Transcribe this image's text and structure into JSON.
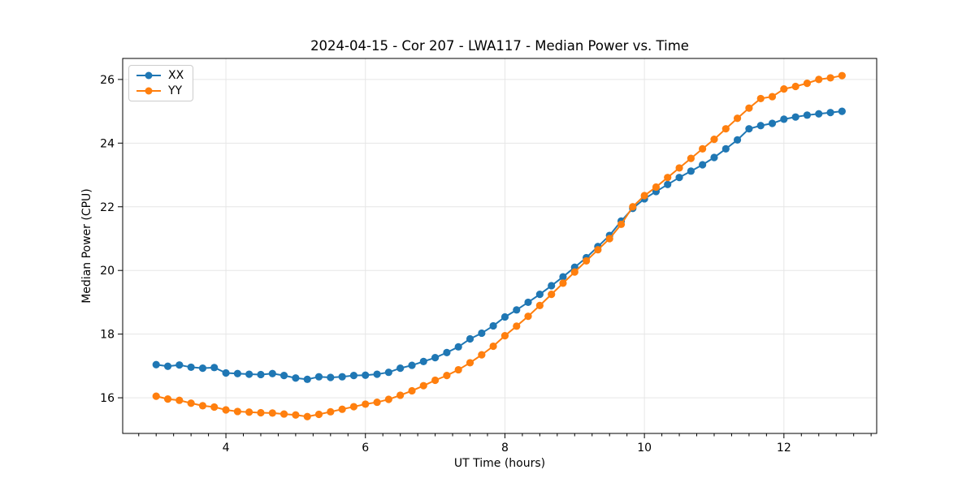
{
  "chart_data": {
    "type": "line",
    "title": "2024-04-15 - Cor 207 - LWA117 - Median Power vs. Time",
    "xlabel": "UT Time (hours)",
    "ylabel": "Median Power (CPU)",
    "legend_position": "upper-left",
    "grid": true,
    "marker": "o",
    "xlim": [
      2.52,
      13.33
    ],
    "ylim": [
      14.88,
      26.66
    ],
    "xticks": [
      4,
      6,
      8,
      10,
      12
    ],
    "yticks": [
      16,
      18,
      20,
      22,
      24,
      26
    ],
    "x_minor_tick_step": 0.25,
    "x": [
      3.0,
      3.167,
      3.333,
      3.5,
      3.667,
      3.833,
      4.0,
      4.167,
      4.333,
      4.5,
      4.667,
      4.833,
      5.0,
      5.167,
      5.333,
      5.5,
      5.667,
      5.833,
      6.0,
      6.167,
      6.333,
      6.5,
      6.667,
      6.833,
      7.0,
      7.167,
      7.333,
      7.5,
      7.667,
      7.833,
      8.0,
      8.167,
      8.333,
      8.5,
      8.667,
      8.833,
      9.0,
      9.167,
      9.333,
      9.5,
      9.667,
      9.833,
      10.0,
      10.167,
      10.333,
      10.5,
      10.667,
      10.833,
      11.0,
      11.167,
      11.333,
      11.5,
      11.667,
      11.833,
      12.0,
      12.167,
      12.333,
      12.5,
      12.667,
      12.833
    ],
    "series": [
      {
        "name": "XX",
        "color": "#1f77b4",
        "values": [
          17.04,
          16.99,
          17.03,
          16.96,
          16.93,
          16.95,
          16.78,
          16.76,
          16.74,
          16.73,
          16.76,
          16.7,
          16.62,
          16.58,
          16.66,
          16.64,
          16.66,
          16.7,
          16.71,
          16.74,
          16.8,
          16.93,
          17.02,
          17.14,
          17.26,
          17.42,
          17.6,
          17.85,
          18.03,
          18.26,
          18.54,
          18.76,
          19.0,
          19.25,
          19.52,
          19.8,
          20.1,
          20.4,
          20.75,
          21.1,
          21.55,
          21.95,
          22.25,
          22.48,
          22.7,
          22.92,
          23.12,
          23.32,
          23.55,
          23.82,
          24.1,
          24.45,
          24.55,
          24.62,
          24.75,
          24.82,
          24.88,
          24.92,
          24.96,
          25.0
        ]
      },
      {
        "name": "YY",
        "color": "#ff7f0e",
        "values": [
          16.05,
          15.96,
          15.92,
          15.83,
          15.75,
          15.71,
          15.62,
          15.57,
          15.55,
          15.53,
          15.52,
          15.49,
          15.46,
          15.41,
          15.48,
          15.56,
          15.64,
          15.72,
          15.8,
          15.86,
          15.95,
          16.08,
          16.22,
          16.38,
          16.55,
          16.7,
          16.88,
          17.1,
          17.35,
          17.62,
          17.95,
          18.25,
          18.56,
          18.9,
          19.25,
          19.6,
          19.95,
          20.3,
          20.65,
          21.0,
          21.45,
          22.0,
          22.35,
          22.62,
          22.92,
          23.22,
          23.52,
          23.82,
          24.12,
          24.45,
          24.78,
          25.1,
          25.4,
          25.46,
          25.7,
          25.78,
          25.88,
          26.0,
          26.05,
          26.12
        ]
      }
    ],
    "colors": {
      "grid": "#e6e6e6",
      "spine": "#000000",
      "tick_label": "#000000",
      "background": "#ffffff"
    }
  }
}
